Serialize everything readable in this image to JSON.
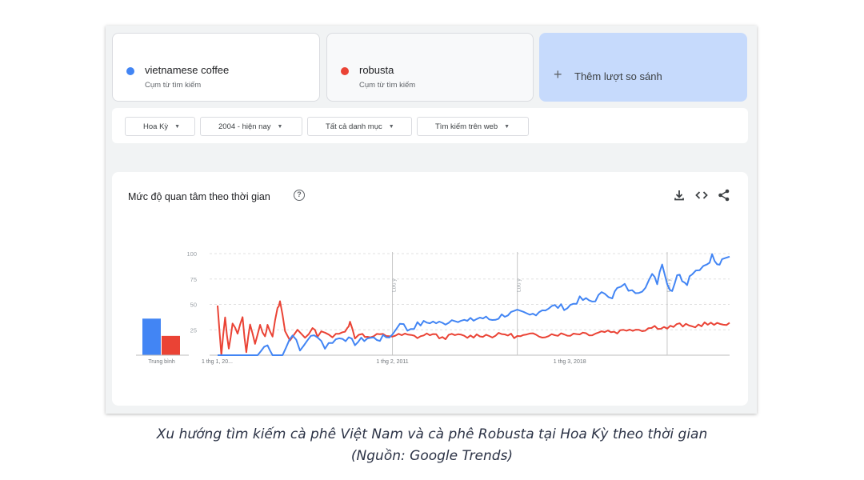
{
  "terms": [
    {
      "name": "vietnamese coffee",
      "subtitle": "Cụm từ tìm kiếm",
      "color": "#4285f4"
    },
    {
      "name": "robusta",
      "subtitle": "Cụm từ tìm kiếm",
      "color": "#ea4335"
    }
  ],
  "add_compare": {
    "icon": "plus-icon",
    "label": "Thêm lượt so sánh"
  },
  "filters": [
    {
      "label": "Hoa Kỳ"
    },
    {
      "label": "2004 - hiện nay"
    },
    {
      "label": "Tất cả danh mục"
    },
    {
      "label": "Tìm kiếm trên web"
    }
  ],
  "panel": {
    "title": "Mức độ quan tâm theo thời gian",
    "tools": [
      "help-icon",
      "download-icon",
      "embed-icon",
      "share-icon"
    ]
  },
  "chart_data": {
    "type": "line",
    "title": "",
    "xlabel": "",
    "ylabel": "",
    "x_tick_labels": [
      "1 thg 1, 20...",
      "1 thg 2, 2011",
      "1 thg 3, 2018"
    ],
    "y_ticks": [
      25,
      50,
      75,
      100
    ],
    "ylim": [
      0,
      100
    ],
    "grid": "horizontal dashed",
    "annotations": [
      {
        "x_date": "2011-01",
        "label": "Lưu ý"
      },
      {
        "x_date": "2016-01",
        "label": "Lưu ý"
      },
      {
        "x_date": "2022-01",
        "label": "Lưu ý"
      }
    ],
    "x_start_year": 2004.0,
    "x_end_year": 2024.5,
    "series": [
      {
        "name": "vietnamese coffee",
        "color": "#4285f4",
        "points": [
          [
            2004.0,
            0
          ],
          [
            2005.0,
            0
          ],
          [
            2005.6,
            0
          ],
          [
            2006.0,
            12
          ],
          [
            2006.2,
            0
          ],
          [
            2006.6,
            0
          ],
          [
            2007.0,
            22
          ],
          [
            2007.3,
            4
          ],
          [
            2007.6,
            16
          ],
          [
            2008.0,
            20
          ],
          [
            2008.3,
            8
          ],
          [
            2008.6,
            14
          ],
          [
            2009.0,
            18
          ],
          [
            2009.5,
            12
          ],
          [
            2010.0,
            17
          ],
          [
            2010.5,
            16
          ],
          [
            2011.0,
            20
          ],
          [
            2011.3,
            33
          ],
          [
            2011.6,
            25
          ],
          [
            2012.0,
            30
          ],
          [
            2012.5,
            33
          ],
          [
            2013.0,
            31
          ],
          [
            2013.5,
            36
          ],
          [
            2014.0,
            33
          ],
          [
            2014.5,
            37
          ],
          [
            2015.0,
            35
          ],
          [
            2015.5,
            40
          ],
          [
            2016.0,
            42
          ],
          [
            2016.5,
            39
          ],
          [
            2017.0,
            45
          ],
          [
            2017.5,
            48
          ],
          [
            2018.0,
            47
          ],
          [
            2018.5,
            55
          ],
          [
            2019.0,
            53
          ],
          [
            2019.5,
            62
          ],
          [
            2019.8,
            58
          ],
          [
            2020.0,
            65
          ],
          [
            2020.3,
            68
          ],
          [
            2020.6,
            62
          ],
          [
            2021.0,
            65
          ],
          [
            2021.4,
            78
          ],
          [
            2021.6,
            72
          ],
          [
            2021.8,
            92
          ],
          [
            2022.0,
            70
          ],
          [
            2022.2,
            64
          ],
          [
            2022.4,
            80
          ],
          [
            2022.6,
            75
          ],
          [
            2022.8,
            72
          ],
          [
            2023.0,
            82
          ],
          [
            2023.3,
            86
          ],
          [
            2023.6,
            90
          ],
          [
            2023.8,
            98
          ],
          [
            2024.0,
            88
          ],
          [
            2024.2,
            92
          ],
          [
            2024.5,
            97
          ]
        ]
      },
      {
        "name": "robusta",
        "color": "#ea4335",
        "points": [
          [
            2004.0,
            48
          ],
          [
            2004.15,
            0
          ],
          [
            2004.3,
            37
          ],
          [
            2004.45,
            5
          ],
          [
            2004.6,
            33
          ],
          [
            2004.8,
            22
          ],
          [
            2005.0,
            36
          ],
          [
            2005.15,
            2
          ],
          [
            2005.3,
            32
          ],
          [
            2005.5,
            12
          ],
          [
            2005.7,
            28
          ],
          [
            2005.9,
            20
          ],
          [
            2006.0,
            30
          ],
          [
            2006.2,
            20
          ],
          [
            2006.4,
            45
          ],
          [
            2006.5,
            52
          ],
          [
            2006.7,
            24
          ],
          [
            2006.9,
            14
          ],
          [
            2007.2,
            25
          ],
          [
            2007.5,
            18
          ],
          [
            2007.8,
            26
          ],
          [
            2008.0,
            20
          ],
          [
            2008.3,
            24
          ],
          [
            2008.6,
            18
          ],
          [
            2009.0,
            22
          ],
          [
            2009.2,
            28
          ],
          [
            2009.3,
            32
          ],
          [
            2009.5,
            18
          ],
          [
            2009.8,
            22
          ],
          [
            2010.0,
            17
          ],
          [
            2010.5,
            20
          ],
          [
            2011.0,
            19
          ],
          [
            2011.5,
            20
          ],
          [
            2012.0,
            18
          ],
          [
            2012.5,
            21
          ],
          [
            2013.0,
            17
          ],
          [
            2013.5,
            20
          ],
          [
            2014.0,
            18
          ],
          [
            2014.5,
            20
          ],
          [
            2015.0,
            19
          ],
          [
            2015.5,
            21
          ],
          [
            2016.0,
            18
          ],
          [
            2016.5,
            20
          ],
          [
            2017.0,
            19
          ],
          [
            2017.5,
            21
          ],
          [
            2018.0,
            20
          ],
          [
            2018.5,
            22
          ],
          [
            2019.0,
            21
          ],
          [
            2019.5,
            24
          ],
          [
            2020.0,
            23
          ],
          [
            2020.5,
            26
          ],
          [
            2021.0,
            25
          ],
          [
            2021.5,
            28
          ],
          [
            2022.0,
            27
          ],
          [
            2022.5,
            30
          ],
          [
            2023.0,
            28
          ],
          [
            2023.5,
            31
          ],
          [
            2024.0,
            30
          ],
          [
            2024.5,
            32
          ]
        ]
      }
    ],
    "average": {
      "label": "Trung bình",
      "bars": [
        {
          "series": "vietnamese coffee",
          "value": 36,
          "color": "#4285f4"
        },
        {
          "series": "robusta",
          "value": 19,
          "color": "#ea4335"
        }
      ]
    }
  },
  "caption": {
    "line1": "Xu hướng tìm kiếm cà phê Việt Nam và cà phê Robusta tại Hoa Kỳ theo thời gian",
    "line2": "(Nguồn: Google Trends)"
  }
}
